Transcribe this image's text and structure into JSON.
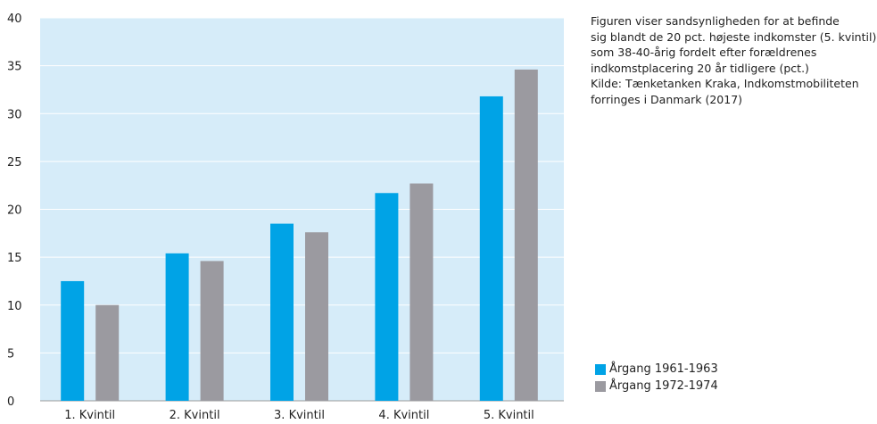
{
  "chart_data": {
    "type": "bar",
    "categories": [
      "1. Kvintil",
      "2. Kvintil",
      "3. Kvintil",
      "4. Kvintil",
      "5. Kvintil"
    ],
    "series": [
      {
        "name": "Årgang 1961-1963",
        "color": "#00a3e6",
        "values": [
          12.5,
          15.4,
          18.5,
          21.7,
          31.8
        ]
      },
      {
        "name": "Årgang 1972-1974",
        "color": "#9b9aa0",
        "values": [
          10.0,
          14.6,
          17.6,
          22.7,
          34.6
        ]
      }
    ],
    "ylim": [
      0,
      40
    ],
    "yticks": [
      0,
      5,
      10,
      15,
      20,
      25,
      30,
      35,
      40
    ],
    "xlabel": "",
    "ylabel": "",
    "background": "#d6ecf9",
    "grid": true,
    "legend_position": "bottom-right, outside plot"
  },
  "note": {
    "lines": [
      "Figuren viser sandsynligheden for at befinde",
      "sig blandt de 20 pct. højeste indkomster (5. kvintil)",
      "som 38-40-årig fordelt efter forældrenes",
      "indkomstplacering 20 år tidligere (pct.)",
      "Kilde: Tænketanken Kraka, Indkomstmobiliteten",
      "forringes i Danmark (2017)"
    ]
  }
}
